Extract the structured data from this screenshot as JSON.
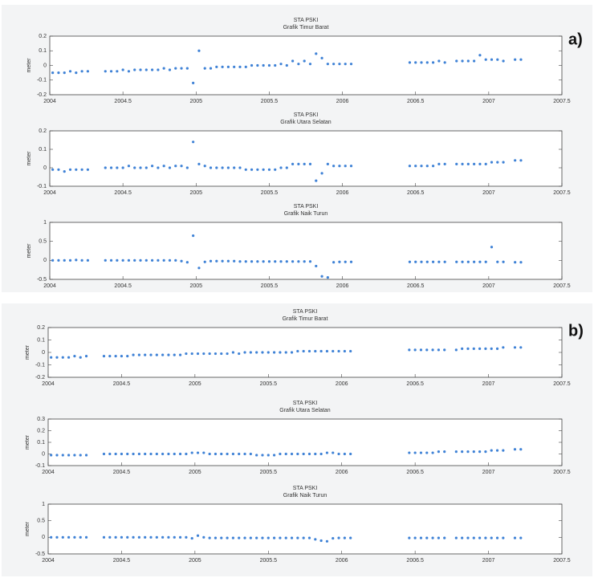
{
  "panel_labels": [
    "a)",
    "b)"
  ],
  "chart_data": [
    {
      "type": "scatter",
      "title": "STA PSKI",
      "subtitle": "Grafik Timur Barat",
      "ylabel": "meter",
      "color": "#3f82d6",
      "xlim": [
        2004,
        2007.5
      ],
      "xticks": [
        2004,
        2004.5,
        2005,
        2005.5,
        2006,
        2006.5,
        2007,
        2007.5
      ],
      "ylim": [
        -0.2,
        0.2
      ],
      "yticks": [
        -0.2,
        -0.1,
        0,
        0.1,
        0.2
      ],
      "x": [
        2004.02,
        2004.06,
        2004.1,
        2004.14,
        2004.18,
        2004.22,
        2004.26,
        2004.38,
        2004.42,
        2004.46,
        2004.5,
        2004.54,
        2004.58,
        2004.62,
        2004.66,
        2004.7,
        2004.74,
        2004.78,
        2004.82,
        2004.86,
        2004.9,
        2004.94,
        2004.98,
        2005.02,
        2005.06,
        2005.1,
        2005.14,
        2005.18,
        2005.22,
        2005.26,
        2005.3,
        2005.34,
        2005.38,
        2005.42,
        2005.46,
        2005.5,
        2005.54,
        2005.58,
        2005.62,
        2005.66,
        2005.7,
        2005.74,
        2005.78,
        2005.82,
        2005.86,
        2005.9,
        2005.94,
        2005.98,
        2006.02,
        2006.06,
        2006.46,
        2006.5,
        2006.54,
        2006.58,
        2006.62,
        2006.66,
        2006.7,
        2006.78,
        2006.82,
        2006.86,
        2006.9,
        2006.94,
        2006.98,
        2007.02,
        2007.06,
        2007.1,
        2007.18,
        2007.22
      ],
      "values": [
        -0.05,
        -0.05,
        -0.05,
        -0.04,
        -0.05,
        -0.04,
        -0.04,
        -0.04,
        -0.04,
        -0.04,
        -0.03,
        -0.04,
        -0.03,
        -0.03,
        -0.03,
        -0.03,
        -0.03,
        -0.02,
        -0.03,
        -0.02,
        -0.02,
        -0.02,
        -0.12,
        0.1,
        -0.02,
        -0.02,
        -0.01,
        -0.01,
        -0.01,
        -0.01,
        -0.01,
        -0.01,
        0,
        0,
        0,
        0,
        0,
        0.01,
        0,
        0.03,
        0.01,
        0.03,
        0.01,
        0.08,
        0.05,
        0.01,
        0.01,
        0.01,
        0.01,
        0.01,
        0.02,
        0.02,
        0.02,
        0.02,
        0.02,
        0.03,
        0.02,
        0.03,
        0.03,
        0.03,
        0.03,
        0.07,
        0.04,
        0.04,
        0.04,
        0.03,
        0.04,
        0.04
      ]
    },
    {
      "type": "scatter",
      "title": "STA PSKI",
      "subtitle": "Grafik Utara Selatan",
      "ylabel": "meter",
      "color": "#3f82d6",
      "xlim": [
        2004,
        2007.5
      ],
      "xticks": [
        2004,
        2004.5,
        2005,
        2005.5,
        2006,
        2006.5,
        2007,
        2007.5
      ],
      "ylim": [
        -0.1,
        0.2
      ],
      "yticks": [
        -0.1,
        0,
        0.1,
        0.2
      ],
      "x": [
        2004.02,
        2004.06,
        2004.1,
        2004.14,
        2004.18,
        2004.22,
        2004.26,
        2004.38,
        2004.42,
        2004.46,
        2004.5,
        2004.54,
        2004.58,
        2004.62,
        2004.66,
        2004.7,
        2004.74,
        2004.78,
        2004.82,
        2004.86,
        2004.9,
        2004.94,
        2004.98,
        2005.02,
        2005.06,
        2005.1,
        2005.14,
        2005.18,
        2005.22,
        2005.26,
        2005.3,
        2005.34,
        2005.38,
        2005.42,
        2005.46,
        2005.5,
        2005.54,
        2005.58,
        2005.62,
        2005.66,
        2005.7,
        2005.74,
        2005.78,
        2005.82,
        2005.86,
        2005.9,
        2005.94,
        2005.98,
        2006.02,
        2006.06,
        2006.46,
        2006.5,
        2006.54,
        2006.58,
        2006.62,
        2006.66,
        2006.7,
        2006.78,
        2006.82,
        2006.86,
        2006.9,
        2006.94,
        2006.98,
        2007.02,
        2007.06,
        2007.1,
        2007.18,
        2007.22
      ],
      "values": [
        -0.01,
        -0.01,
        -0.02,
        -0.01,
        -0.01,
        -0.01,
        -0.01,
        0,
        0,
        0,
        0,
        0.01,
        0,
        0,
        0,
        0.01,
        0,
        0.01,
        0,
        0.01,
        0.01,
        0,
        0.14,
        0.02,
        0.01,
        0,
        0,
        0,
        0,
        0,
        0,
        -0.01,
        -0.01,
        -0.01,
        -0.01,
        -0.01,
        -0.01,
        0,
        0,
        0.02,
        0.02,
        0.02,
        0.02,
        -0.07,
        -0.03,
        0.02,
        0.01,
        0.01,
        0.01,
        0.01,
        0.01,
        0.01,
        0.01,
        0.01,
        0.01,
        0.02,
        0.02,
        0.02,
        0.02,
        0.02,
        0.02,
        0.02,
        0.02,
        0.03,
        0.03,
        0.03,
        0.04,
        0.04
      ]
    },
    {
      "type": "scatter",
      "title": "STA PSKI",
      "subtitle": "Grafik Naik Turun",
      "ylabel": "meter",
      "color": "#3f82d6",
      "xlim": [
        2004,
        2007.5
      ],
      "xticks": [
        2004,
        2004.5,
        2005,
        2005.5,
        2006,
        2006.5,
        2007,
        2007.5
      ],
      "ylim": [
        -0.5,
        1
      ],
      "yticks": [
        -0.5,
        0,
        0.5,
        1
      ],
      "x": [
        2004.02,
        2004.06,
        2004.1,
        2004.14,
        2004.18,
        2004.22,
        2004.26,
        2004.38,
        2004.42,
        2004.46,
        2004.5,
        2004.54,
        2004.58,
        2004.62,
        2004.66,
        2004.7,
        2004.74,
        2004.78,
        2004.82,
        2004.86,
        2004.9,
        2004.94,
        2004.98,
        2005.02,
        2005.06,
        2005.1,
        2005.14,
        2005.18,
        2005.22,
        2005.26,
        2005.3,
        2005.34,
        2005.38,
        2005.42,
        2005.46,
        2005.5,
        2005.54,
        2005.58,
        2005.62,
        2005.66,
        2005.7,
        2005.74,
        2005.78,
        2005.82,
        2005.86,
        2005.9,
        2005.94,
        2005.98,
        2006.02,
        2006.06,
        2006.46,
        2006.5,
        2006.54,
        2006.58,
        2006.62,
        2006.66,
        2006.7,
        2006.78,
        2006.82,
        2006.86,
        2006.9,
        2006.94,
        2006.98,
        2007.02,
        2007.06,
        2007.1,
        2007.18,
        2007.22
      ],
      "values": [
        0,
        0,
        0,
        0,
        0.01,
        0,
        0,
        0,
        0,
        0,
        0,
        0,
        0,
        0,
        0,
        0,
        0,
        0,
        0,
        0,
        -0.02,
        -0.05,
        0.65,
        -0.2,
        -0.04,
        -0.02,
        -0.02,
        -0.02,
        -0.02,
        -0.02,
        -0.03,
        -0.03,
        -0.03,
        -0.03,
        -0.03,
        -0.03,
        -0.03,
        -0.03,
        -0.03,
        -0.03,
        -0.03,
        -0.03,
        -0.03,
        -0.15,
        -0.42,
        -0.45,
        -0.05,
        -0.04,
        -0.04,
        -0.04,
        -0.04,
        -0.04,
        -0.04,
        -0.04,
        -0.04,
        -0.04,
        -0.04,
        -0.04,
        -0.04,
        -0.04,
        -0.04,
        -0.04,
        -0.04,
        0.35,
        -0.04,
        -0.04,
        -0.05,
        -0.05
      ]
    },
    {
      "type": "scatter",
      "title": "STA PSKI",
      "subtitle": "Grafik Timur Barat",
      "ylabel": "meter",
      "color": "#3f82d6",
      "xlim": [
        2004,
        2007.5
      ],
      "xticks": [
        2004,
        2004.5,
        2005,
        2005.5,
        2006,
        2006.5,
        2007,
        2007.5
      ],
      "ylim": [
        -0.2,
        0.2
      ],
      "yticks": [
        -0.2,
        -0.1,
        0,
        0.1,
        0.2
      ],
      "x": [
        2004.02,
        2004.06,
        2004.1,
        2004.14,
        2004.18,
        2004.22,
        2004.26,
        2004.38,
        2004.42,
        2004.46,
        2004.5,
        2004.54,
        2004.58,
        2004.62,
        2004.66,
        2004.7,
        2004.74,
        2004.78,
        2004.82,
        2004.86,
        2004.9,
        2004.94,
        2004.98,
        2005.02,
        2005.06,
        2005.1,
        2005.14,
        2005.18,
        2005.22,
        2005.26,
        2005.3,
        2005.34,
        2005.38,
        2005.42,
        2005.46,
        2005.5,
        2005.54,
        2005.58,
        2005.62,
        2005.66,
        2005.7,
        2005.74,
        2005.78,
        2005.82,
        2005.86,
        2005.9,
        2005.94,
        2005.98,
        2006.02,
        2006.06,
        2006.46,
        2006.5,
        2006.54,
        2006.58,
        2006.62,
        2006.66,
        2006.7,
        2006.78,
        2006.82,
        2006.86,
        2006.9,
        2006.94,
        2006.98,
        2007.02,
        2007.06,
        2007.1,
        2007.18,
        2007.22
      ],
      "values": [
        -0.04,
        -0.04,
        -0.04,
        -0.04,
        -0.03,
        -0.04,
        -0.03,
        -0.03,
        -0.03,
        -0.03,
        -0.03,
        -0.03,
        -0.02,
        -0.02,
        -0.02,
        -0.02,
        -0.02,
        -0.02,
        -0.02,
        -0.02,
        -0.02,
        -0.01,
        -0.01,
        -0.01,
        -0.01,
        -0.01,
        -0.01,
        -0.01,
        -0.01,
        0,
        -0.01,
        0,
        0,
        0,
        0,
        0,
        0,
        0,
        0,
        0,
        0.01,
        0.01,
        0.01,
        0.01,
        0.01,
        0.01,
        0.01,
        0.01,
        0.01,
        0.01,
        0.02,
        0.02,
        0.02,
        0.02,
        0.02,
        0.02,
        0.02,
        0.02,
        0.03,
        0.03,
        0.03,
        0.03,
        0.03,
        0.03,
        0.03,
        0.04,
        0.04,
        0.04
      ]
    },
    {
      "type": "scatter",
      "title": "STA PSKI",
      "subtitle": "Grafik Utara Selatan",
      "ylabel": "meter",
      "color": "#3f82d6",
      "xlim": [
        2004,
        2007.5
      ],
      "xticks": [
        2004,
        2004.5,
        2005,
        2005.5,
        2006,
        2006.5,
        2007,
        2007.5
      ],
      "ylim": [
        -0.1,
        0.3
      ],
      "yticks": [
        -0.1,
        0,
        0.1,
        0.2,
        0.3
      ],
      "x": [
        2004.02,
        2004.06,
        2004.1,
        2004.14,
        2004.18,
        2004.22,
        2004.26,
        2004.38,
        2004.42,
        2004.46,
        2004.5,
        2004.54,
        2004.58,
        2004.62,
        2004.66,
        2004.7,
        2004.74,
        2004.78,
        2004.82,
        2004.86,
        2004.9,
        2004.94,
        2004.98,
        2005.02,
        2005.06,
        2005.1,
        2005.14,
        2005.18,
        2005.22,
        2005.26,
        2005.3,
        2005.34,
        2005.38,
        2005.42,
        2005.46,
        2005.5,
        2005.54,
        2005.58,
        2005.62,
        2005.66,
        2005.7,
        2005.74,
        2005.78,
        2005.82,
        2005.86,
        2005.9,
        2005.94,
        2005.98,
        2006.02,
        2006.06,
        2006.46,
        2006.5,
        2006.54,
        2006.58,
        2006.62,
        2006.66,
        2006.7,
        2006.78,
        2006.82,
        2006.86,
        2006.9,
        2006.94,
        2006.98,
        2007.02,
        2007.06,
        2007.1,
        2007.18,
        2007.22
      ],
      "values": [
        -0.01,
        -0.01,
        -0.01,
        -0.01,
        -0.01,
        -0.01,
        -0.01,
        0,
        0,
        0,
        0,
        0,
        0,
        0,
        0,
        0,
        0,
        0,
        0,
        0,
        0,
        0,
        0.01,
        0.01,
        0.01,
        0,
        0,
        0,
        0,
        0,
        0,
        0,
        0,
        -0.01,
        -0.01,
        -0.01,
        -0.01,
        0,
        0,
        0,
        0,
        0,
        0,
        0,
        0,
        0.01,
        0.01,
        0,
        0,
        0,
        0.01,
        0.01,
        0.01,
        0.01,
        0.01,
        0.02,
        0.02,
        0.02,
        0.02,
        0.02,
        0.02,
        0.02,
        0.02,
        0.03,
        0.03,
        0.03,
        0.04,
        0.04
      ]
    },
    {
      "type": "scatter",
      "title": "STA PSKI",
      "subtitle": "Grafik Naik Turun",
      "ylabel": "meter",
      "color": "#3f82d6",
      "xlim": [
        2004,
        2007.5
      ],
      "xticks": [
        2004,
        2004.5,
        2005,
        2005.5,
        2006,
        2006.5,
        2007,
        2007.5
      ],
      "ylim": [
        -0.5,
        1
      ],
      "yticks": [
        -0.5,
        0,
        0.5,
        1
      ],
      "x": [
        2004.02,
        2004.06,
        2004.1,
        2004.14,
        2004.18,
        2004.22,
        2004.26,
        2004.38,
        2004.42,
        2004.46,
        2004.5,
        2004.54,
        2004.58,
        2004.62,
        2004.66,
        2004.7,
        2004.74,
        2004.78,
        2004.82,
        2004.86,
        2004.9,
        2004.94,
        2004.98,
        2005.02,
        2005.06,
        2005.1,
        2005.14,
        2005.18,
        2005.22,
        2005.26,
        2005.3,
        2005.34,
        2005.38,
        2005.42,
        2005.46,
        2005.5,
        2005.54,
        2005.58,
        2005.62,
        2005.66,
        2005.7,
        2005.74,
        2005.78,
        2005.82,
        2005.86,
        2005.9,
        2005.94,
        2005.98,
        2006.02,
        2006.06,
        2006.46,
        2006.5,
        2006.54,
        2006.58,
        2006.62,
        2006.66,
        2006.7,
        2006.78,
        2006.82,
        2006.86,
        2006.9,
        2006.94,
        2006.98,
        2007.02,
        2007.06,
        2007.1,
        2007.18,
        2007.22
      ],
      "values": [
        0,
        0,
        0,
        0,
        0,
        0,
        0,
        0,
        0,
        0,
        0,
        0,
        0,
        0,
        0,
        0,
        0,
        0,
        0,
        0,
        0,
        0,
        -0.03,
        0.05,
        0,
        -0.02,
        -0.02,
        -0.02,
        -0.02,
        -0.02,
        -0.02,
        -0.02,
        -0.02,
        -0.02,
        -0.02,
        -0.02,
        -0.02,
        -0.02,
        -0.02,
        -0.02,
        -0.02,
        -0.02,
        -0.02,
        -0.06,
        -0.1,
        -0.12,
        -0.03,
        -0.02,
        -0.02,
        -0.02,
        -0.02,
        -0.02,
        -0.02,
        -0.02,
        -0.02,
        -0.02,
        -0.02,
        -0.02,
        -0.02,
        -0.02,
        -0.02,
        -0.02,
        -0.02,
        -0.02,
        -0.02,
        -0.02,
        -0.02,
        -0.02
      ]
    }
  ]
}
